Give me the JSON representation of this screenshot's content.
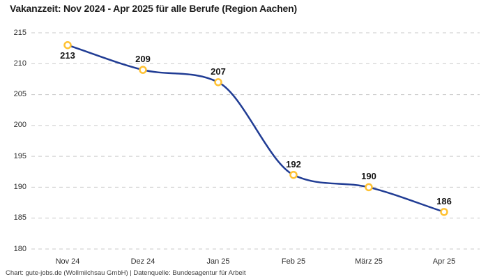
{
  "title": "Vakanzzeit: Nov 2024 - Apr 2025 für alle Berufe (Region Aachen)",
  "footer": "Chart: gute-jobs.de (Wollmilchsau GmbH) | Datenquelle: Bundesagentur für Arbeit",
  "chart_data": {
    "type": "line",
    "title": "Vakanzzeit: Nov 2024 - Apr 2025 für alle Berufe (Region Aachen)",
    "categories": [
      "Nov 24",
      "Dez 24",
      "Jan 25",
      "Feb 25",
      "März 25",
      "Apr 25"
    ],
    "values": [
      213,
      209,
      207,
      192,
      190,
      186
    ],
    "data_labels": [
      "213",
      "209",
      "207",
      "192",
      "190",
      "186"
    ],
    "label_positions": [
      "below",
      "above",
      "above",
      "above",
      "above",
      "above"
    ],
    "xlabel": "",
    "ylabel": "",
    "ylim": [
      180,
      215
    ],
    "yticks": [
      215,
      210,
      205,
      200,
      195,
      190,
      185,
      180
    ],
    "grid": "horizontal-dashed",
    "legend": "none",
    "smooth": true,
    "colors": {
      "line": "#203c94",
      "marker_stroke": "#ffc233",
      "marker_fill": "#ffffff",
      "grid": "#c9c9c9",
      "tick_text": "#2e2e2e",
      "label_text": "#141414"
    }
  }
}
